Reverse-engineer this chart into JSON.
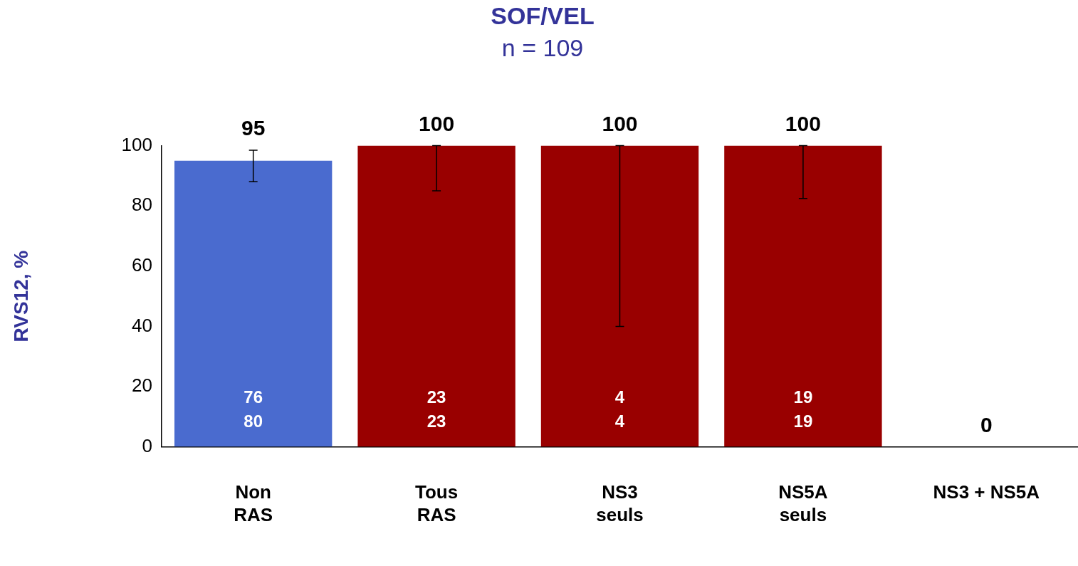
{
  "chart_data": {
    "type": "bar",
    "title": "SOF/VEL",
    "subtitle": "n = 109",
    "ylabel": "RVS12, %",
    "categories": [
      "Non\nRAS",
      "Tous\nRAS",
      "NS3\nseuls",
      "NS5A\nseuls",
      "NS3 + NS5A"
    ],
    "values": [
      95,
      100,
      100,
      100,
      0
    ],
    "colors": [
      "#4a6bcf",
      "#990000",
      "#990000",
      "#990000",
      "#990000"
    ],
    "errors": [
      [
        88,
        98.5
      ],
      [
        85,
        100
      ],
      [
        40,
        100
      ],
      [
        82.5,
        100
      ],
      null
    ],
    "data_labels": true,
    "ylim": [
      0,
      100
    ],
    "yticks": [
      0,
      20,
      40,
      60,
      80,
      100
    ],
    "grid": false,
    "legend": false,
    "annotations": [
      "76",
      "80",
      "23",
      "23",
      "4",
      "4",
      "19",
      "19"
    ]
  }
}
